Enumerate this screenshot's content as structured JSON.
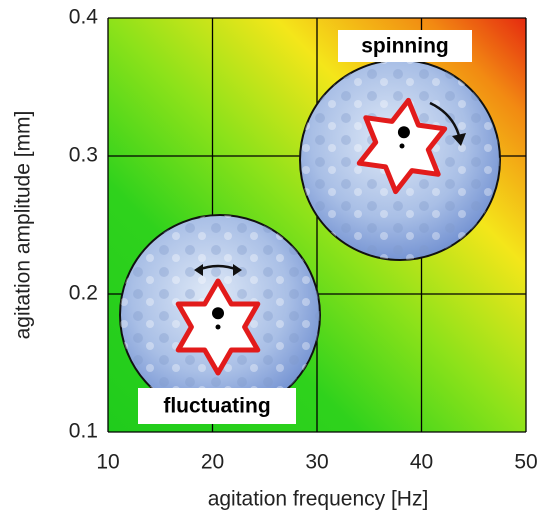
{
  "chart_data": {
    "type": "phase-diagram",
    "xlabel": "agitation frequency [Hz]",
    "ylabel": "agitation amplitude [mm]",
    "xlim": [
      10,
      50
    ],
    "ylim": [
      0.1,
      0.4
    ],
    "xticks": [
      10,
      20,
      30,
      40,
      50
    ],
    "yticks": [
      0.1,
      0.2,
      0.3,
      0.4
    ],
    "grid": true,
    "annotations": [
      "spinning",
      "fluctuating"
    ]
  }
}
